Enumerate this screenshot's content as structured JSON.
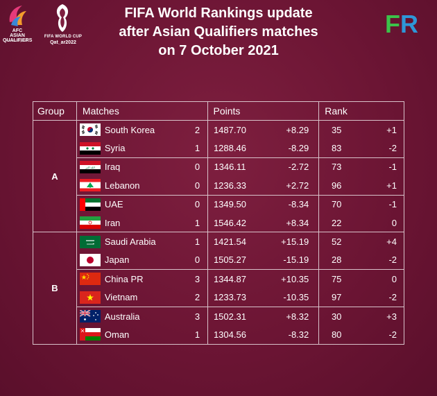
{
  "logos": {
    "asian_qualifiers": {
      "line1": "AFC",
      "line2": "ASIAN",
      "line3": "QUALIFIERS",
      "tagline": "ROAD TO QATAR"
    },
    "world_cup": {
      "line1": "FIFA WORLD CUP",
      "line2": "Qat_ar2022"
    }
  },
  "headline": {
    "line1": "FIFA World Rankings update",
    "line2": "after Asian Qualifiers matches",
    "line3": "on 7 October 2021"
  },
  "brand": {
    "f": "F",
    "r": "R"
  },
  "table": {
    "headers": {
      "group": "Group",
      "matches": "Matches",
      "points": "Points",
      "rank": "Rank"
    },
    "groups": [
      {
        "name": "A",
        "rows": [
          {
            "flag": "south-korea",
            "team": "South Korea",
            "score": "2",
            "points": "1487.70",
            "change": "+8.29",
            "rank": "35",
            "rank_change": "+1"
          },
          {
            "flag": "syria",
            "team": "Syria",
            "score": "1",
            "points": "1288.46",
            "change": "-8.29",
            "rank": "83",
            "rank_change": "-2"
          },
          {
            "flag": "iraq",
            "team": "Iraq",
            "score": "0",
            "points": "1346.11",
            "change": "-2.72",
            "rank": "73",
            "rank_change": "-1"
          },
          {
            "flag": "lebanon",
            "team": "Lebanon",
            "score": "0",
            "points": "1236.33",
            "change": "+2.72",
            "rank": "96",
            "rank_change": "+1"
          },
          {
            "flag": "uae",
            "team": "UAE",
            "score": "0",
            "points": "1349.50",
            "change": "-8.34",
            "rank": "70",
            "rank_change": "-1"
          },
          {
            "flag": "iran",
            "team": "Iran",
            "score": "1",
            "points": "1546.42",
            "change": "+8.34",
            "rank": "22",
            "rank_change": "0"
          }
        ]
      },
      {
        "name": "B",
        "rows": [
          {
            "flag": "saudi-arabia",
            "team": "Saudi Arabia",
            "score": "1",
            "points": "1421.54",
            "change": "+15.19",
            "rank": "52",
            "rank_change": "+4"
          },
          {
            "flag": "japan",
            "team": "Japan",
            "score": "0",
            "points": "1505.27",
            "change": "-15.19",
            "rank": "28",
            "rank_change": "-2"
          },
          {
            "flag": "china",
            "team": "China PR",
            "score": "3",
            "points": "1344.87",
            "change": "+10.35",
            "rank": "75",
            "rank_change": "0"
          },
          {
            "flag": "vietnam",
            "team": "Vietnam",
            "score": "2",
            "points": "1233.73",
            "change": "-10.35",
            "rank": "97",
            "rank_change": "-2"
          },
          {
            "flag": "australia",
            "team": "Australia",
            "score": "3",
            "points": "1502.31",
            "change": "+8.32",
            "rank": "30",
            "rank_change": "+3"
          },
          {
            "flag": "oman",
            "team": "Oman",
            "score": "1",
            "points": "1304.56",
            "change": "-8.32",
            "rank": "80",
            "rank_change": "-2"
          }
        ]
      }
    ]
  },
  "colors": {
    "background": "#6c1534",
    "grid": "#d9c3cb",
    "brand_f": "#3cc24a",
    "brand_r": "#2e97d8"
  }
}
